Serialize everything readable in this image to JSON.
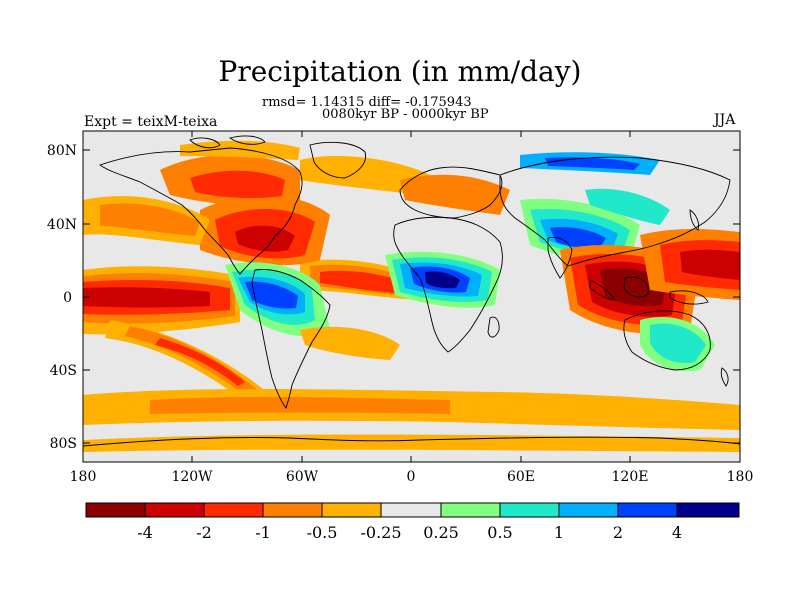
{
  "header": {
    "title": "Precipitation (in mm/day)",
    "stats_line": "rmsd= 1.14315 diff= -0.175943",
    "period_line": "0080kyr BP - 0000kyr BP",
    "left_label": "Expt = teixM-teixa",
    "right_label": "JJA"
  },
  "axes": {
    "lat_ticks": [
      "80N",
      "40N",
      "0",
      "40S",
      "80S"
    ],
    "lon_ticks": [
      "180",
      "120W",
      "60W",
      "0",
      "60E",
      "120E",
      "180"
    ]
  },
  "colorbar": {
    "labels": [
      "-4",
      "-2",
      "-1",
      "-0.5",
      "-0.25",
      "0.25",
      "0.5",
      "1",
      "2",
      "4"
    ],
    "colors": [
      "#8b0000",
      "#cc0000",
      "#ff2a00",
      "#ff8000",
      "#ffb000",
      "#e8e8e8",
      "#80ff80",
      "#20e8c8",
      "#00b0ff",
      "#0040ff",
      "#00008b"
    ]
  },
  "map_colors": {
    "ocean": "#e8e8e8",
    "dark_red": "#8b0000",
    "red": "#cc0000",
    "red_orange": "#ff2a00",
    "orange": "#ff8000",
    "light_orange": "#ffb000",
    "light_green": "#80ff80",
    "teal": "#20e8c8",
    "light_blue": "#00b0ff",
    "blue": "#0040ff",
    "navy": "#00008b",
    "coast": "#000000"
  }
}
